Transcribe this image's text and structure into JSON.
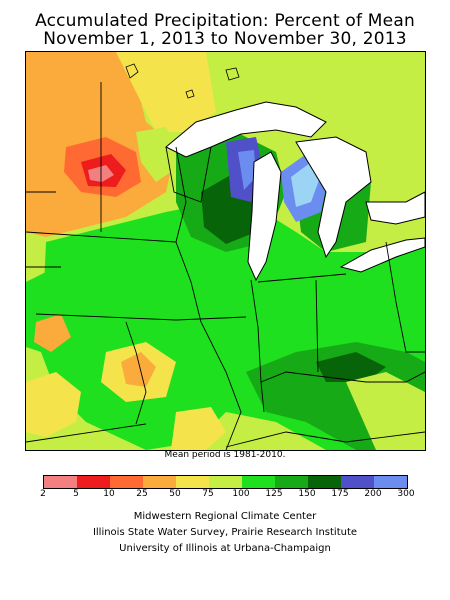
{
  "title_line1": "Accumulated Precipitation: Percent of Mean",
  "title_line2": "November 1, 2013 to November 30, 2013",
  "mean_note": "Mean period is 1981-2010.",
  "legend": {
    "labels": [
      "2",
      "5",
      "10",
      "25",
      "50",
      "75",
      "100",
      "125",
      "150",
      "175",
      "200",
      "300"
    ],
    "colors": [
      "#f28080",
      "#ee1c1c",
      "#ff6a33",
      "#fbaa3c",
      "#f5e34b",
      "#c5ee44",
      "#1ee01e",
      "#17aa17",
      "#086408",
      "#5050c8",
      "#6b8df0",
      "#9bd4f5"
    ]
  },
  "credits": [
    "Midwestern Regional Climate Center",
    "Illinois State Water Survey, Prairie Research Institute",
    "University of Illinois at Urbana-Champaign"
  ]
}
